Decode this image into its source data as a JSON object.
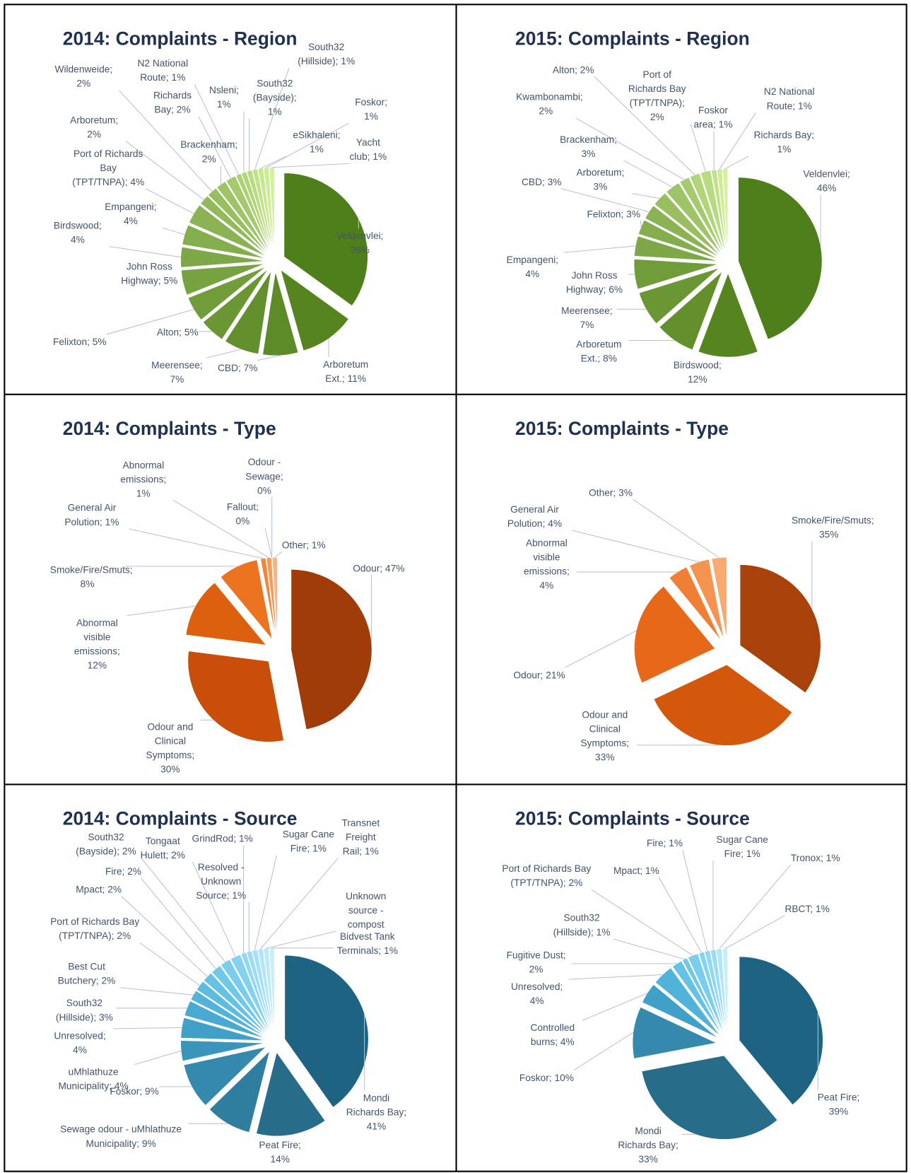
{
  "chart_data": [
    {
      "type": "pie",
      "title": "2014: Complaints - Region",
      "labels": [
        "Veldenvlei; 36%",
        "Arboretum Ext.; 11%",
        "CBD; 7%",
        "Meerensee; 7%",
        "Alton; 5%",
        "Felixton; 5%",
        "John Ross Highway; 5%",
        "Birdswood; 4%",
        "Empangeni; 4%",
        "Port of Richards Bay (TPT/TNPA); 4%",
        "Arboretum; 2%",
        "Wildenweide; 2%",
        "Brackenham; 2%",
        "Richards Bay; 2%",
        "N2 National Route; 1%",
        "Nsleni; 1%",
        "South32 (Bayside); 1%",
        "South32 (Hillside); 1%",
        "eSikhaleni; 1%",
        "Foskor; 1%",
        "Yacht club; 1%"
      ],
      "values": [
        36,
        11,
        7,
        7,
        5,
        5,
        5,
        4,
        4,
        4,
        2,
        2,
        2,
        2,
        1,
        1,
        1,
        1,
        1,
        1,
        1
      ],
      "colors": [
        "#4f7f1a",
        "#568520",
        "#5c8b27",
        "#63902d",
        "#6a9634",
        "#709c3a",
        "#77a240",
        "#7ea747",
        "#84ad4d",
        "#8bb354",
        "#92b95a",
        "#98be60",
        "#9fc467",
        "#a5ca6d",
        "#acd074",
        "#b3d57a",
        "#b9db80",
        "#c0e187",
        "#c7e78d",
        "#cdec94",
        "#d4f29a"
      ]
    },
    {
      "type": "pie",
      "title": "2015: Complaints - Region",
      "labels": [
        "Veldenvlei; 46%",
        "Birdswood; 12%",
        "Arboretum Ext.; 8%",
        "Meerensee; 7%",
        "John Ross Highway; 6%",
        "Empangeni; 4%",
        "Felixton; 3%",
        "CBD; 3%",
        "Arboretum; 3%",
        "Brackenham; 3%",
        "Kwambonambi; 2%",
        "Alton; 2%",
        "Port of Richards Bay (TPT/TNPA); 2%",
        "Foskor area; 1%",
        "N2 National Route; 1%",
        "Richards Bay; 1%"
      ],
      "values": [
        46,
        12,
        8,
        7,
        6,
        4,
        3,
        3,
        3,
        3,
        2,
        2,
        2,
        1,
        1,
        1
      ],
      "colors": [
        "#4f7f1a",
        "#568520",
        "#63902d",
        "#6a9634",
        "#709c3a",
        "#7ea747",
        "#84ad4d",
        "#8bb354",
        "#98be60",
        "#9fc467",
        "#a5ca6d",
        "#b3d57a",
        "#b9db80",
        "#c0e187",
        "#cdec94",
        "#d4f29a"
      ]
    },
    {
      "type": "pie",
      "title": "2014: Complaints - Type",
      "labels": [
        "Odour; 47%",
        "Odour and Clinical Symptoms; 30%",
        "Abnormal visible emissions; 12%",
        "Smoke/Fire/Smuts; 8%",
        "General Air Polution; 1%",
        "Abnormal emissions; 1%",
        "Fallout; 0%",
        "Odour - Sewage; 0%",
        "Other; 1%"
      ],
      "values": [
        47,
        30,
        12,
        8,
        1,
        1,
        0,
        0,
        1
      ],
      "colors": [
        "#a03c08",
        "#c84e0a",
        "#dc600e",
        "#ec7420",
        "#f28538",
        "#f59a58",
        "#f7ac74",
        "#f8b07a",
        "#fab482"
      ]
    },
    {
      "type": "pie",
      "title": "2015: Complaints - Type",
      "labels": [
        "Smoke/Fire/Smuts; 35%",
        "Odour and Clinical Symptoms; 33%",
        "Odour; 21%",
        "Abnormal visible emissions; 4%",
        "General Air Polution; 4%",
        "Other; 3%"
      ],
      "values": [
        35,
        33,
        21,
        4,
        4,
        3
      ],
      "colors": [
        "#a8420a",
        "#d4580c",
        "#e8681a",
        "#f07e34",
        "#f49450",
        "#f8aa70"
      ]
    },
    {
      "type": "pie",
      "title": "2014: Complaints - Source",
      "labels": [
        "Mondi Richards Bay; 41%",
        "Peat Fire; 14%",
        "Sewage odour - uMhlathuze Municipality; 9%",
        "Foskor; 9%",
        "uMhlathuze Municipality; 4%",
        "Unresolved; 4%",
        "South32 (Hillside); 3%",
        "Best Cut Butchery; 2%",
        "Port of Richards Bay (TPT/TNPA); 2%",
        "Mpact; 2%",
        "Fire; 2%",
        "South32 (Bayside); 2%",
        "Tongaat Hulett; 2%",
        "GrindRod; 1%",
        "Resolved - Unknown Source; 1%",
        "Sugar Cane Fire; 1%",
        "Transnet Freight Rail; 1%",
        "Unknown source - compost",
        "Bidvest Tank Terminals; 1%"
      ],
      "values": [
        41,
        14,
        9,
        9,
        4,
        4,
        3,
        2,
        2,
        2,
        2,
        2,
        2,
        1,
        1,
        1,
        1,
        1,
        1
      ],
      "colors": [
        "#1e6482",
        "#276c89",
        "#2f7ea0",
        "#3589ad",
        "#3a95bb",
        "#40a0c8",
        "#48aad2",
        "#52b3da",
        "#5cbbe0",
        "#66c2e5",
        "#70c8e9",
        "#7acdec",
        "#85d2ef",
        "#90d7f1",
        "#9bdcf3",
        "#a6e0f5",
        "#b1e5f7",
        "#bce9f8",
        "#c8eefa"
      ]
    },
    {
      "type": "pie",
      "title": "2015: Complaints - Source",
      "labels": [
        "Peat Fire; 39%",
        "Mondi Richards Bay; 33%",
        "Foskor; 10%",
        "Controlled burns; 4%",
        "Unresolved; 4%",
        "Fugitive Dust; 2%",
        "South32 (Hillside); 1%",
        "Port of Richards Bay (TPT/TNPA); 2%",
        "Mpact; 1%",
        "Fire; 1%",
        "Sugar Cane Fire; 1%",
        "Tronox; 1%",
        "RBCT; 1%"
      ],
      "values": [
        39,
        33,
        10,
        4,
        4,
        2,
        1,
        2,
        1,
        1,
        1,
        1,
        1
      ],
      "colors": [
        "#1e6482",
        "#276c89",
        "#3589ad",
        "#40a0c8",
        "#52b3da",
        "#66c2e5",
        "#70c8e9",
        "#7acdec",
        "#85d2ef",
        "#90d7f1",
        "#9bdcf3",
        "#b1e5f7",
        "#c8eefa"
      ]
    }
  ]
}
